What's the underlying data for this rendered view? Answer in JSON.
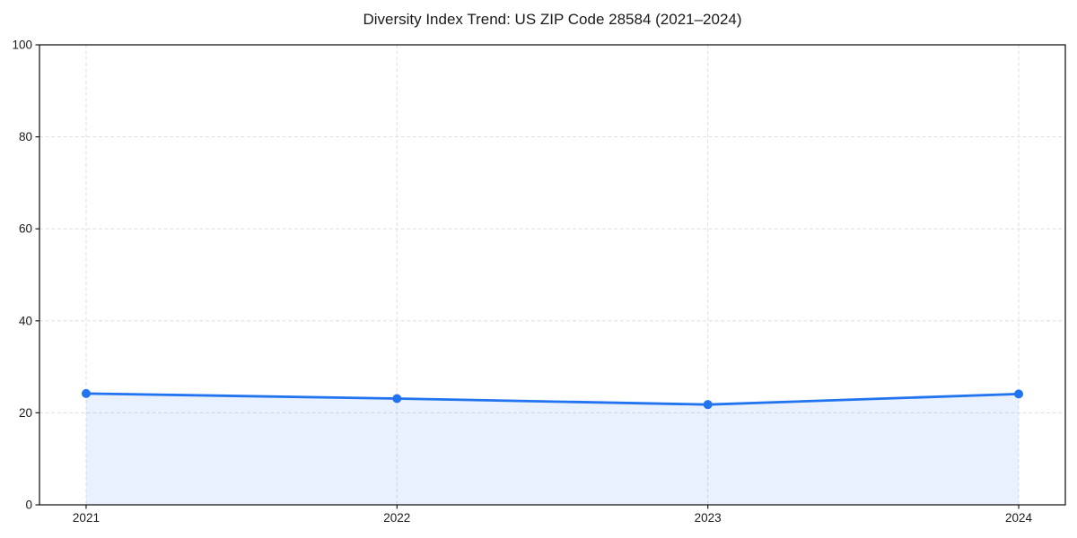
{
  "page": {
    "background": "#ffffff"
  },
  "chart_data": {
    "type": "area",
    "title": "Diversity Index Trend: US ZIP Code 28584 (2021–2024)",
    "series_name": "Diversity Index",
    "x": [
      2021,
      2022,
      2023,
      2024
    ],
    "values": [
      24.2,
      23.1,
      21.8,
      24.1
    ],
    "xticks": [
      "2021",
      "2022",
      "2023",
      "2024"
    ],
    "yticks": [
      0,
      20,
      40,
      60,
      80,
      100
    ],
    "xlabel": "",
    "ylabel": "",
    "ylim": [
      0,
      100
    ],
    "xlim_padding_years": 0.15,
    "grid": "dashed-both-axes",
    "legend": "none",
    "marker": "circle",
    "colors": {
      "line": "#2173f0",
      "marker": "#2173f0",
      "fill": "rgba(33, 115, 240, 0.10)",
      "grid": "#e2e2e2",
      "spine": "#1a1a1a",
      "tick_text": "#1a1a1a"
    }
  }
}
